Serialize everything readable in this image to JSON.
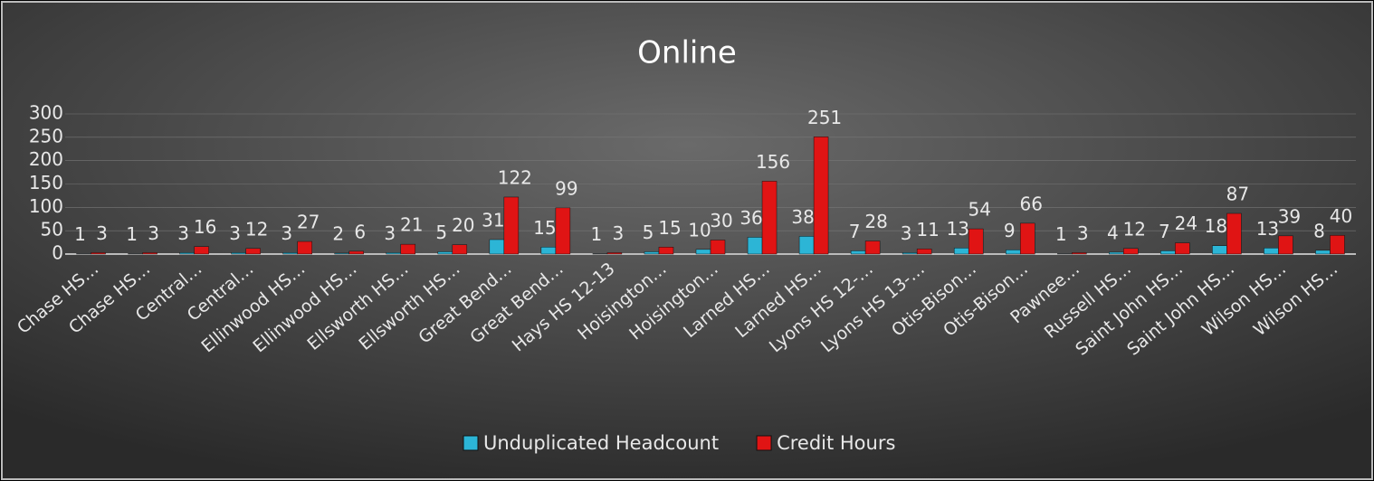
{
  "chart_data": {
    "type": "bar",
    "title": "Online",
    "categories": [
      "Chase HS…",
      "Chase HS…",
      "Central…",
      "Central…",
      "Ellinwood HS…",
      "Ellinwood HS…",
      "Ellsworth HS…",
      "Ellsworth HS…",
      "Great Bend…",
      "Great Bend…",
      "Hays HS 12-13",
      "Hoisington…",
      "Hoisington…",
      "Larned HS…",
      "Larned HS…",
      "Lyons HS 12-…",
      "Lyons HS 13-…",
      "Otis-Bison…",
      "Otis-Bison…",
      "Pawnee…",
      "Russell HS…",
      "Saint John HS…",
      "Saint John HS…",
      "Wilson HS…",
      "Wilson HS…"
    ],
    "series": [
      {
        "name": "Unduplicated Headcount",
        "color": "#2cb5d6",
        "values": [
          1,
          1,
          3,
          3,
          3,
          2,
          3,
          5,
          31,
          15,
          1,
          5,
          10,
          36,
          38,
          7,
          3,
          13,
          9,
          1,
          4,
          7,
          18,
          13,
          8
        ]
      },
      {
        "name": "Credit Hours",
        "color": "#e01414",
        "values": [
          3,
          3,
          16,
          12,
          27,
          6,
          21,
          20,
          122,
          99,
          3,
          15,
          30,
          156,
          251,
          28,
          11,
          54,
          66,
          3,
          12,
          24,
          87,
          39,
          40
        ]
      }
    ],
    "ylim": [
      0,
      300
    ],
    "yticks": [
      0,
      50,
      100,
      150,
      200,
      250,
      300
    ],
    "grid": true,
    "legend": "bottom"
  }
}
